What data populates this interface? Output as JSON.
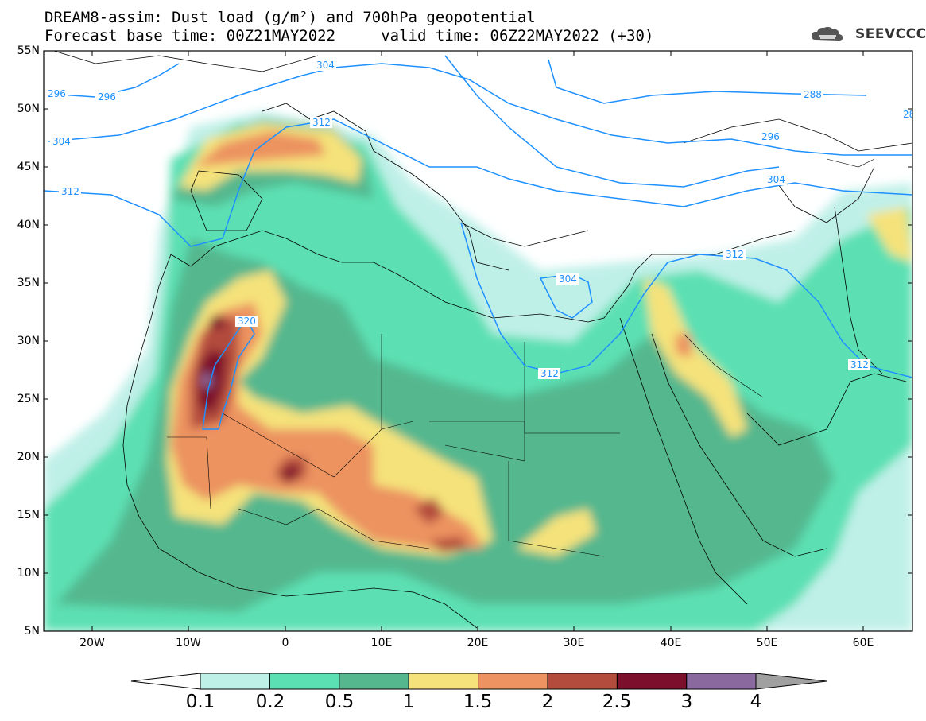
{
  "title": {
    "line1": "DREAM8-assim: Dust load (g/m²) and 700hPa geopotential",
    "line2": "Forecast base time: 00Z21MAY2022     valid time: 06Z22MAY2022 (+30)"
  },
  "logo": {
    "icon": "cloud-icon",
    "text": "SEEVCCC"
  },
  "axes": {
    "lat_labels": [
      "55N",
      "50N",
      "45N",
      "40N",
      "35N",
      "30N",
      "25N",
      "20N",
      "15N",
      "10N",
      "5N"
    ],
    "lon_labels": [
      "20W",
      "10W",
      "0",
      "10E",
      "20E",
      "30E",
      "40E",
      "50E",
      "60E"
    ]
  },
  "contour_labels": [
    "296",
    "296",
    "304",
    "304",
    "312",
    "312",
    "304",
    "288",
    "296",
    "304",
    "312",
    "304",
    "312",
    "320",
    "312",
    "28"
  ],
  "colorbar": {
    "labels": [
      "0.1",
      "0.2",
      "0.5",
      "1",
      "1.5",
      "2",
      "2.5",
      "3",
      "4"
    ],
    "colors": [
      "#bff0e8",
      "#5be0b3",
      "#55b78e",
      "#f5e27a",
      "#ec9361",
      "#b34c3c",
      "#7b0f2c",
      "#8a6a9e"
    ],
    "under_color": "#ffffff",
    "over_color": "#a0a0a0"
  },
  "colors": {
    "contour": "#1e90ff",
    "land": "#ffffff",
    "border": "#000000"
  }
}
